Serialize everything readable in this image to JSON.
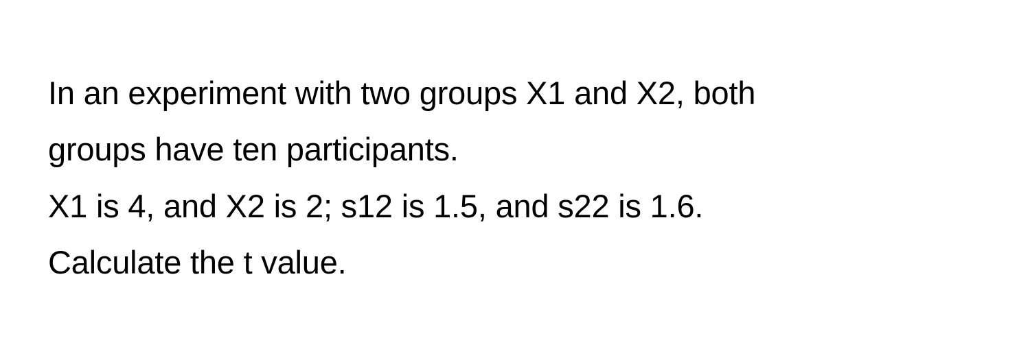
{
  "problem": {
    "line1": "In an experiment with two groups X1 and X2, both",
    "line2": "groups have ten participants.",
    "line3": "X1 is 4, and X2 is 2; s12 is 1.5, and s22 is 1.6.",
    "line4": "Calculate the t value."
  },
  "style": {
    "background_color": "#ffffff",
    "text_color": "#000000",
    "font_size": 47,
    "line_height": 1.75,
    "font_family": "-apple-system"
  }
}
